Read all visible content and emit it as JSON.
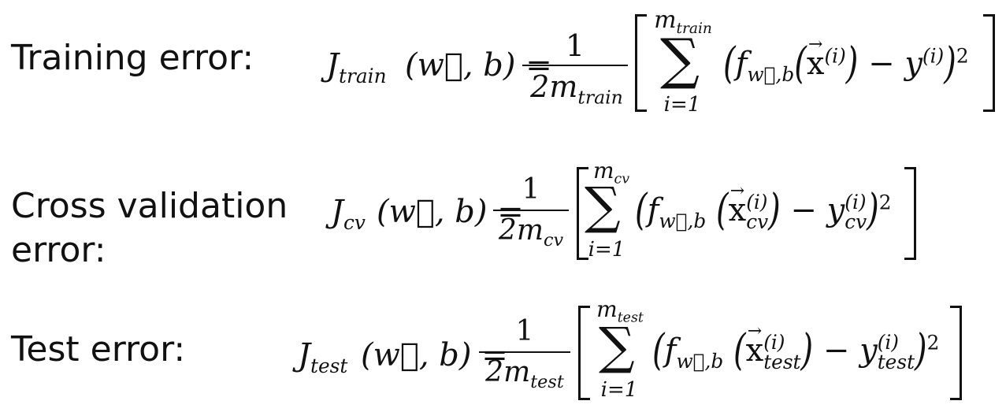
{
  "rows": [
    {
      "label": "Training error:",
      "J_sub": "train",
      "args": "(w⃗, b) =",
      "numerator": "1",
      "denominator_prefix": "2m",
      "denominator_sub": "train",
      "upper_limit": "m",
      "upper_limit_sub": "train",
      "lower_limit": "i=1",
      "f_sub": "w⃗,b",
      "x_sub": "",
      "y_sub": "",
      "sup_i": "(i)",
      "square": "2"
    },
    {
      "label_line1": "Cross validation",
      "label_line2": "error:",
      "J_sub": "cv",
      "args": "(w⃗, b) =",
      "numerator": "1",
      "denominator_prefix": "2m",
      "denominator_sub": "cv",
      "upper_limit": "m",
      "upper_limit_sub": "cv",
      "lower_limit": "i=1",
      "f_sub": "w⃗,b",
      "x_sub": "cv",
      "y_sub": "cv",
      "sup_i": "(i)",
      "square": "2"
    },
    {
      "label": "Test error:",
      "J_sub": "test",
      "args": "(w⃗, b) =",
      "numerator": "1",
      "denominator_prefix": "2m",
      "denominator_sub": "test",
      "upper_limit": "m",
      "upper_limit_sub": "test",
      "lower_limit": "i=1",
      "f_sub": "w⃗,b",
      "x_sub": "test",
      "y_sub": "test",
      "sup_i": "(i)",
      "square": "2"
    }
  ],
  "symbols": {
    "J": "J",
    "sum": "∑",
    "f": "f",
    "x": "x",
    "y": "y",
    "w": "w",
    "arrow": "→",
    "minus": "−",
    "open_paren": "(",
    "close_paren": ")"
  }
}
